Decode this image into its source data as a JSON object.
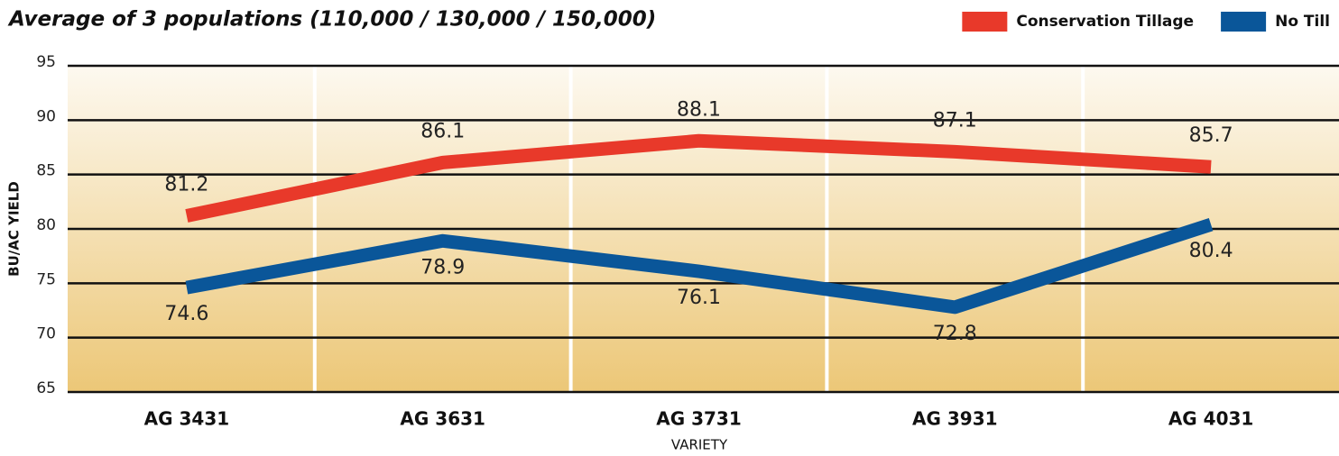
{
  "chart_data": {
    "type": "line",
    "subtitle": "Average of 3 populations (110,000 / 130,000 / 150,000)",
    "ylabel": "BU/AC YIELD",
    "xlabel": "VARIETY",
    "categories": [
      "AG 3431",
      "AG 3631",
      "AG 3731",
      "AG 3931",
      "AG 4031"
    ],
    "series": [
      {
        "name": "Conservation Tillage",
        "color": "#e8392a",
        "values": [
          81.2,
          86.1,
          88.1,
          87.1,
          85.7
        ]
      },
      {
        "name": "No Till",
        "color": "#0a5699",
        "values": [
          74.6,
          78.9,
          76.1,
          72.8,
          80.4
        ]
      }
    ],
    "ylim": [
      65,
      95
    ],
    "yticks": [
      65,
      70,
      75,
      80,
      85,
      90,
      95
    ],
    "grid": true,
    "legend": "top-right"
  }
}
